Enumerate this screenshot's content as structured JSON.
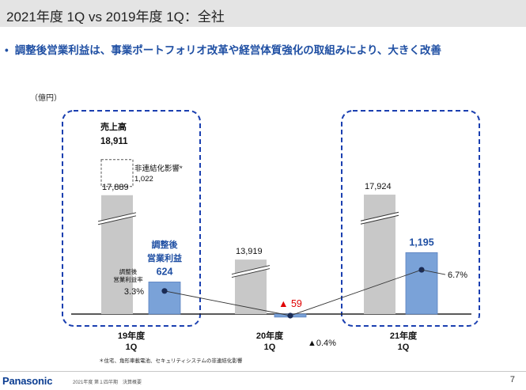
{
  "header": {
    "title": "2021年度 1Q vs 2019年度 1Q：全社"
  },
  "headline": {
    "bullet": "•",
    "text": "調整後営業利益は、事業ポートフォリオ改革や経営体質強化の取組みにより、大きく改善"
  },
  "unit_label": "（億円）",
  "chart_data": {
    "type": "bar",
    "categories": [
      "19年度\n1Q",
      "20年度\n1Q",
      "21年度\n1Q"
    ],
    "category_lines": [
      [
        "19年度",
        "1Q"
      ],
      [
        "20年度",
        "1Q"
      ],
      [
        "21年度",
        "1Q"
      ]
    ],
    "series": [
      {
        "name": "売上高",
        "values": [
          17889,
          13919,
          17924
        ],
        "labels": [
          "17,889",
          "13,919",
          "17,924"
        ],
        "color": "#c8c8c8",
        "axis_break": true
      },
      {
        "name": "調整後営業利益",
        "values": [
          624,
          -59,
          1195
        ],
        "labels": [
          "624",
          "▲ 59",
          "1,195"
        ],
        "color": "#7aa2d8"
      }
    ],
    "rate_line": {
      "name": "調整後営業利益率",
      "values": [
        3.3,
        -0.4,
        6.7
      ],
      "labels": [
        "3.3%",
        "▲0.4%",
        "6.7%"
      ]
    },
    "deconsolidation": {
      "label": "非連結化影響*",
      "value": 1022,
      "value_label": "1,022",
      "total_label": "18,911",
      "total_value": 18911
    },
    "legend_labels": {
      "sales": "売上高",
      "profit": [
        "調整後",
        "営業利益"
      ],
      "rate": [
        "調整後",
        "営業利益率"
      ]
    },
    "highlight_color": "#1a3fb0",
    "negative_color": "#e00000"
  },
  "footnote": "＊住宅、角形車載電池、セキュリティシステムの非連結化影響",
  "footer": {
    "logo": "Panasonic",
    "note": "2021年度 第１四半期　決算概要",
    "page": "7"
  }
}
